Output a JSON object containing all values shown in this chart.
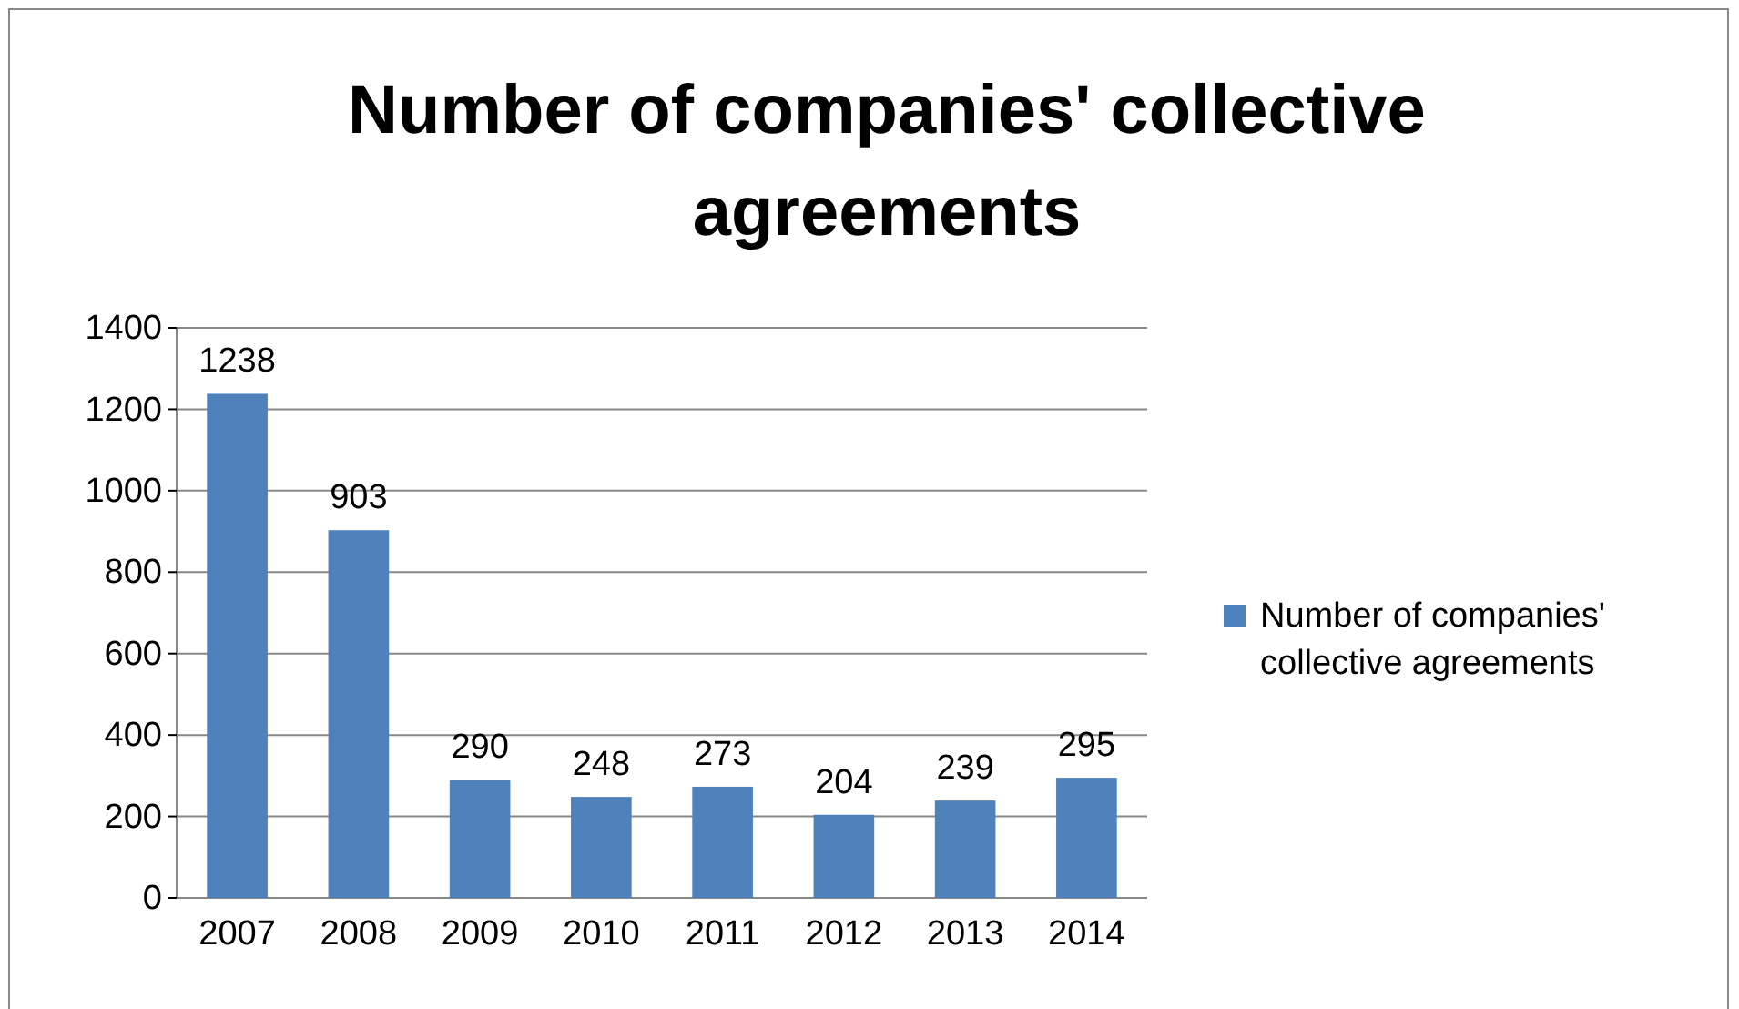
{
  "chart_data": {
    "type": "bar",
    "title": "Number of companies' collective agreements",
    "categories": [
      "2007",
      "2008",
      "2009",
      "2010",
      "2011",
      "2012",
      "2013",
      "2014"
    ],
    "series": [
      {
        "name": "Number of companies' collective agreements",
        "color": "#4f81bd",
        "values": [
          1238,
          903,
          290,
          248,
          273,
          204,
          239,
          295
        ]
      }
    ],
    "ylim": [
      0,
      1400
    ],
    "yticks": [
      0,
      200,
      400,
      600,
      800,
      1000,
      1200,
      1400
    ],
    "grid": "y",
    "legend": "right",
    "data_labels": true
  }
}
